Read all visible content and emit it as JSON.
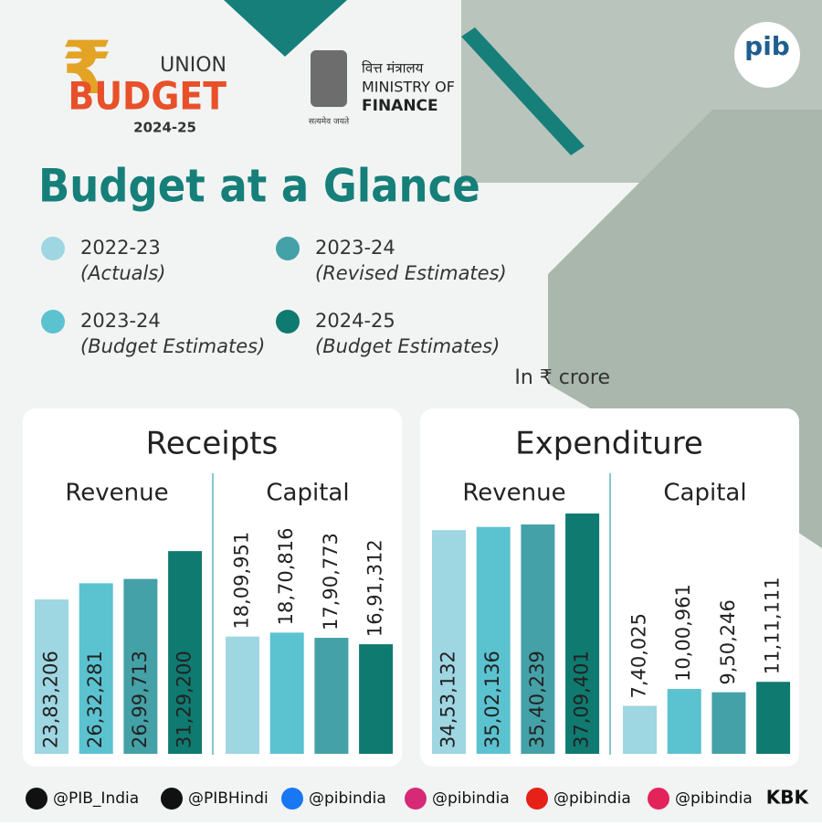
{
  "header": {
    "union": "UNION",
    "budget": "BUDGET",
    "year": "2024-25",
    "ministry_hindi": "वित्त मंत्रालय",
    "ministry": "MINISTRY OF",
    "finance": "FINANCE",
    "motto": "सत्यमेव जयते",
    "pib": "pib"
  },
  "title": "Budget at a Glance",
  "legend": [
    {
      "name": "2022-23",
      "note": "(Actuals)",
      "color": "#9ed6e2"
    },
    {
      "name": "2023-24",
      "note": "(Budget Estimates)",
      "color": "#5bc2d0"
    },
    {
      "name": "2023-24",
      "note": "(Revised Estimates)",
      "color": "#44a1a7"
    },
    {
      "name": "2024-25",
      "note": "(Budget Estimates)",
      "color": "#0f7a70"
    }
  ],
  "unit": "In ₹ crore",
  "chart_data": [
    {
      "type": "bar",
      "title": "Receipts",
      "categories": [
        "Revenue",
        "Capital"
      ],
      "series": [
        {
          "color": "#9ed6e2",
          "values": [
            2383206,
            1809951
          ],
          "value_labels": [
            "23,83,206",
            "18,09,951"
          ]
        },
        {
          "color": "#5bc2d0",
          "values": [
            2632281,
            1870816
          ],
          "value_labels": [
            "26,32,281",
            "18,70,816"
          ]
        },
        {
          "color": "#44a1a7",
          "values": [
            2699713,
            1790773
          ],
          "value_labels": [
            "26,99,713",
            "17,90,773"
          ]
        },
        {
          "color": "#0f7a70",
          "values": [
            3129200,
            1691312
          ],
          "value_labels": [
            "31,29,200",
            "16,91,312"
          ]
        }
      ]
    },
    {
      "type": "bar",
      "title": "Expenditure",
      "categories": [
        "Revenue",
        "Capital"
      ],
      "series": [
        {
          "color": "#9ed6e2",
          "values": [
            3453132,
            740025
          ],
          "value_labels": [
            "34,53,132",
            "7,40,025"
          ]
        },
        {
          "color": "#5bc2d0",
          "values": [
            3502136,
            1000961
          ],
          "value_labels": [
            "35,02,136",
            "10,00,961"
          ]
        },
        {
          "color": "#44a1a7",
          "values": [
            3540239,
            950246
          ],
          "value_labels": [
            "35,40,239",
            "9,50,246"
          ]
        },
        {
          "color": "#0f7a70",
          "values": [
            3709401,
            1111111
          ],
          "value_labels": [
            "37,09,401",
            "11,11,111"
          ]
        }
      ]
    }
  ],
  "footer": [
    "@PIB_India",
    "@PIBHindi",
    "@pibindia",
    "@pibindia",
    "@pibindia",
    "@pibindia"
  ],
  "footer_tag": "KBK"
}
